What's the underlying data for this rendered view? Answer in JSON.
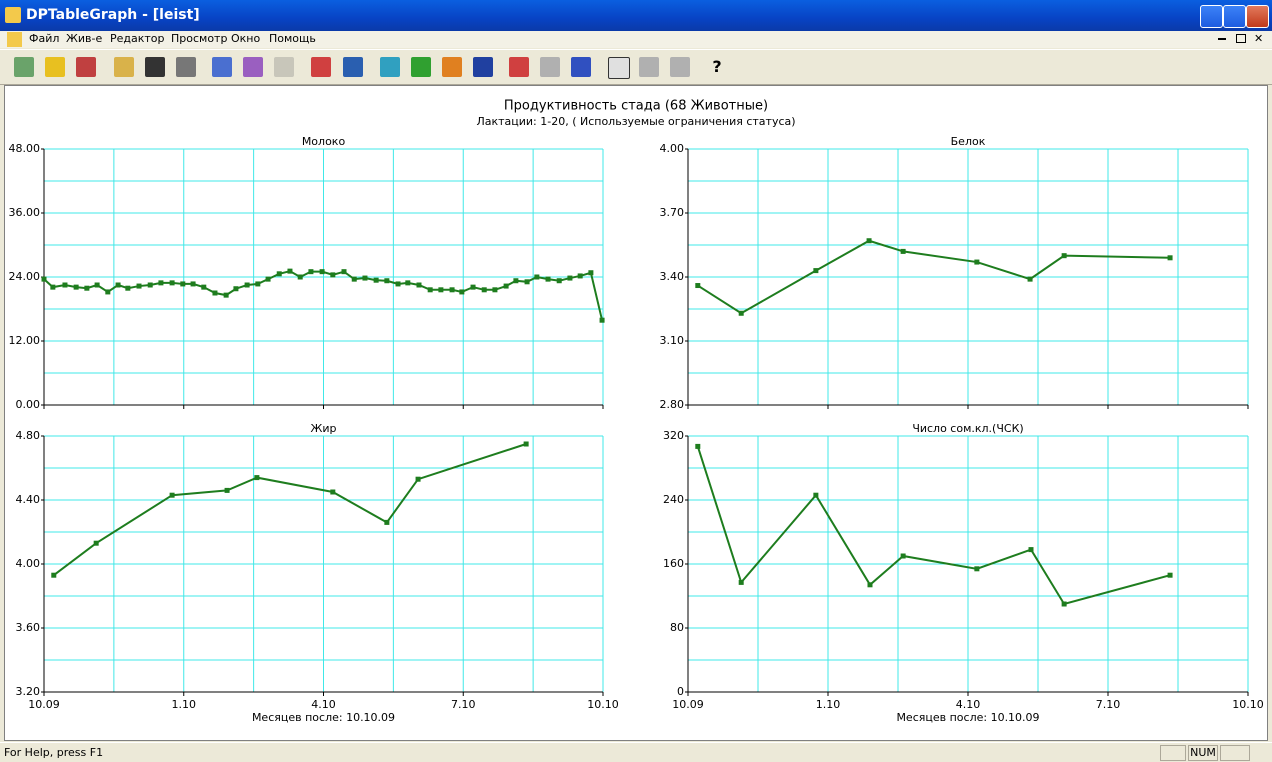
{
  "window": {
    "title": "DPTableGraph - [leist]"
  },
  "menu": [
    "Файл",
    "Жив-е",
    "Редактор",
    "Просмотр",
    "Окно",
    "Помощь"
  ],
  "header": {
    "title": "Продуктивность стада  (68 Животные)",
    "subtitle": "Лактации: 1-20, ( Используемые ограничения статуса)"
  },
  "chart_data": [
    {
      "type": "line",
      "title": "Молоко",
      "color": "#1e7d1e",
      "x": [
        0,
        0.19,
        0.45,
        0.69,
        0.92,
        1.14,
        1.37,
        1.59,
        1.8,
        2.04,
        2.28,
        2.51,
        2.75,
        2.98,
        3.2,
        3.43,
        3.67,
        3.91,
        4.12,
        4.36,
        4.59,
        4.81,
        5.05,
        5.28,
        5.5,
        5.73,
        5.97,
        6.2,
        6.44,
        6.66,
        6.89,
        7.13,
        7.36,
        7.6,
        7.81,
        8.05,
        8.29,
        8.52,
        8.76,
        8.97,
        9.21,
        9.45,
        9.68,
        9.92,
        10.13,
        10.37,
        10.58,
        10.82,
        11.06,
        11.29,
        11.51,
        11.74,
        11.98
      ],
      "values": [
        23.6,
        22.1,
        22.5,
        22.1,
        21.9,
        22.5,
        21.2,
        22.5,
        21.9,
        22.3,
        22.5,
        22.9,
        22.9,
        22.7,
        22.7,
        22.1,
        21.0,
        20.6,
        21.8,
        22.5,
        22.7,
        23.6,
        24.6,
        25.1,
        24.0,
        25.0,
        25.0,
        24.4,
        25.0,
        23.6,
        23.8,
        23.4,
        23.3,
        22.7,
        22.9,
        22.5,
        21.6,
        21.6,
        21.6,
        21.2,
        22.1,
        21.6,
        21.6,
        22.3,
        23.3,
        23.1,
        24.0,
        23.6,
        23.3,
        23.8,
        24.2,
        24.8,
        15.9
      ],
      "xlim": [
        0,
        12
      ],
      "xticks": [
        0,
        3,
        6,
        9,
        12
      ],
      "xminor": [
        1.5,
        4.5,
        7.5,
        10.5
      ],
      "show_xtick_labels": false,
      "ylim": [
        0,
        48
      ],
      "yticks": [
        {
          "value": 0,
          "label": "0.00"
        },
        {
          "value": 12,
          "label": "12.00"
        },
        {
          "value": 24,
          "label": "24.00"
        },
        {
          "value": 36,
          "label": "36.00"
        },
        {
          "value": 48,
          "label": "48.00"
        }
      ],
      "yminor": [
        6,
        18,
        30,
        42
      ],
      "grid": true
    },
    {
      "type": "line",
      "title": "Белок",
      "color": "#1e7d1e",
      "x": [
        0.21,
        1.14,
        2.74,
        3.88,
        4.61,
        6.19,
        7.33,
        8.06,
        10.33
      ],
      "values": [
        3.36,
        3.23,
        3.43,
        3.57,
        3.52,
        3.47,
        3.39,
        3.5,
        3.49
      ],
      "xlim": [
        0,
        12
      ],
      "xticks": [
        0,
        3,
        6,
        9,
        12
      ],
      "xminor": [
        1.5,
        4.5,
        7.5,
        10.5
      ],
      "show_xtick_labels": false,
      "ylim": [
        2.8,
        4
      ],
      "yticks": [
        {
          "value": 2.8,
          "label": "2.80"
        },
        {
          "value": 3.1,
          "label": "3.10"
        },
        {
          "value": 3.4,
          "label": "3.40"
        },
        {
          "value": 3.7,
          "label": "3.70"
        },
        {
          "value": 4,
          "label": "4.00"
        }
      ],
      "yminor": [
        2.95,
        3.25,
        3.55,
        3.85
      ],
      "grid": true
    },
    {
      "type": "line",
      "title": "Жир",
      "color": "#1e7d1e",
      "xlabel": "Месяцев после: 10.10.09",
      "x": [
        0.21,
        1.12,
        2.75,
        3.93,
        4.57,
        6.2,
        7.36,
        8.03,
        10.35
      ],
      "values": [
        3.93,
        4.13,
        4.43,
        4.46,
        4.54,
        4.45,
        4.26,
        4.53,
        4.75
      ],
      "xlim": [
        0,
        12
      ],
      "xticks": [
        {
          "value": 0,
          "label": "10.09"
        },
        {
          "value": 3,
          "label": "1.10"
        },
        {
          "value": 6,
          "label": "4.10"
        },
        {
          "value": 9,
          "label": "7.10"
        },
        {
          "value": 12,
          "label": "10.10"
        }
      ],
      "xminor": [
        1.5,
        4.5,
        7.5,
        10.5
      ],
      "show_xtick_labels": true,
      "ylim": [
        3.2,
        4.8
      ],
      "yticks": [
        {
          "value": 3.2,
          "label": "3.20"
        },
        {
          "value": 3.6,
          "label": "3.60"
        },
        {
          "value": 4,
          "label": "4.00"
        },
        {
          "value": 4.4,
          "label": "4.40"
        },
        {
          "value": 4.8,
          "label": "4.80"
        }
      ],
      "yminor": [
        3.4,
        3.8,
        4.2,
        4.6
      ],
      "grid": true
    },
    {
      "type": "line",
      "title": "Число сом.кл.(ЧСК)",
      "color": "#1e7d1e",
      "xlabel": "Месяцев после: 10.10.09",
      "x": [
        0.21,
        1.14,
        2.74,
        3.9,
        4.61,
        6.19,
        7.35,
        8.06,
        10.33
      ],
      "values": [
        307,
        137,
        246,
        134,
        170,
        154,
        178,
        110,
        146
      ],
      "xlim": [
        0,
        12
      ],
      "xticks": [
        {
          "value": 0,
          "label": "10.09"
        },
        {
          "value": 3,
          "label": "1.10"
        },
        {
          "value": 6,
          "label": "4.10"
        },
        {
          "value": 9,
          "label": "7.10"
        },
        {
          "value": 12,
          "label": "10.10"
        }
      ],
      "xminor": [
        1.5,
        4.5,
        7.5,
        10.5
      ],
      "show_xtick_labels": true,
      "ylim": [
        0,
        320
      ],
      "yticks": [
        0,
        80,
        160,
        240,
        320
      ],
      "yminor": [
        40,
        120,
        200,
        280
      ],
      "grid": true
    }
  ],
  "status": {
    "help": "For Help, press F1",
    "num": "NUM"
  }
}
